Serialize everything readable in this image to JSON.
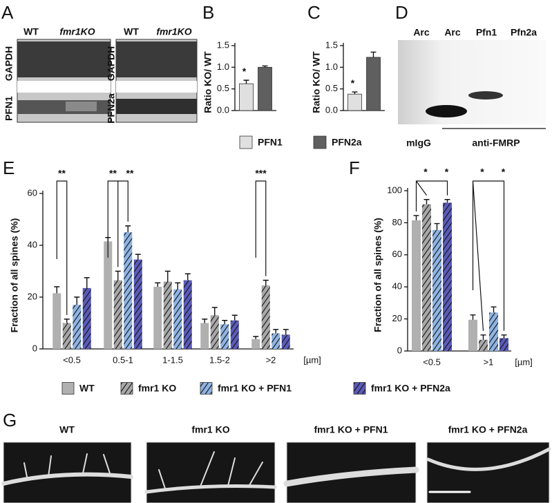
{
  "panel_labels": [
    "A",
    "B",
    "C",
    "D",
    "E",
    "F",
    "G"
  ],
  "blot": {
    "lanes": [
      "WT",
      "fmr1KO",
      "WT",
      "fmr1KO"
    ],
    "rows": [
      "GAPDH",
      "PFN1",
      "GAPDH",
      "PFN2a"
    ]
  },
  "gel": {
    "lanes": [
      "Arc",
      "Arc",
      "Pfn1",
      "Pfn2a"
    ],
    "control": "mIgG",
    "antibody": "anti-FMRP"
  },
  "micrographs": [
    "WT",
    "fmr1 KO",
    "fmr1 KO + PFN1",
    "fmr1 KO + PFN2a"
  ],
  "chart_data": [
    {
      "type": "bar",
      "y_label": "Ratio KO/ WT",
      "ylim": [
        0,
        1.5
      ],
      "yticks": [
        {
          "value": 0,
          "label": "0.0"
        },
        {
          "value": 0.5,
          "label": "0.5"
        },
        {
          "value": 1,
          "label": "1.0"
        },
        {
          "value": 1.5,
          "label": "1.5"
        }
      ],
      "series": [
        {
          "name": "PFN1",
          "color": "#e0e0e0",
          "values": [
            0.62
          ],
          "errors": [
            0.08
          ]
        },
        {
          "name": "PFN2a",
          "color": "#5f5f5f",
          "values": [
            1.0
          ],
          "errors": [
            0.03
          ]
        }
      ],
      "annotations": [
        "*"
      ]
    },
    {
      "type": "bar",
      "y_label": "Ratio KO/ WT",
      "ylim": [
        0,
        1.5
      ],
      "yticks": [
        {
          "value": 0,
          "label": "0.0"
        },
        {
          "value": 0.5,
          "label": "0.5"
        },
        {
          "value": 1,
          "label": "1.0"
        },
        {
          "value": 1.5,
          "label": "1.5"
        }
      ],
      "series": [
        {
          "color": "#e0e0e0",
          "values": [
            0.38
          ],
          "errors": [
            0.05
          ]
        },
        {
          "color": "#5f5f5f",
          "values": [
            1.23
          ],
          "errors": [
            0.12
          ]
        }
      ],
      "annotations": [
        "*"
      ]
    },
    {
      "type": "bar",
      "y_label": "Fraction of all spines (%)",
      "x_unit": "[µm]",
      "categories": [
        "<0.5",
        "0.5-1",
        "1-1.5",
        "1.5-2",
        ">2"
      ],
      "ylim": [
        0,
        60
      ],
      "yticks": [
        0,
        20,
        40,
        60
      ],
      "series": [
        {
          "name": "WT",
          "color": "#b0b0b0",
          "pattern": "solid",
          "values": [
            21.5,
            41.5,
            24,
            10,
            3.8
          ],
          "errors": [
            2.5,
            1.5,
            1.5,
            1.5,
            1
          ]
        },
        {
          "name": "fmr1 KO",
          "color": "#a8a8a8",
          "pattern": "hatched",
          "values": [
            10,
            26.5,
            26,
            13,
            24.5
          ],
          "errors": [
            1.5,
            3.5,
            4,
            3,
            2
          ]
        },
        {
          "name": "fmr1 KO + PFN1",
          "color": "#8fb4e3",
          "pattern": "hatched",
          "values": [
            17,
            45,
            23,
            9.5,
            6
          ],
          "errors": [
            3,
            2.5,
            2.5,
            1.5,
            1.5
          ]
        },
        {
          "name": "fmr1 KO + PFN2a",
          "color": "#5b5bb8",
          "pattern": "hatched",
          "values": [
            23.5,
            34.5,
            26.5,
            11,
            5.5
          ],
          "errors": [
            4,
            2,
            2.5,
            2,
            2
          ]
        }
      ],
      "annotations": [
        "**",
        "**",
        "**",
        "***"
      ]
    },
    {
      "type": "bar",
      "y_label": "Fraction of all spines (%)",
      "x_unit": "[µm]",
      "categories": [
        "<0.5",
        ">1"
      ],
      "ylim": [
        0,
        100
      ],
      "yticks": [
        0,
        20,
        40,
        60,
        80,
        100
      ],
      "series": [
        {
          "color": "#b0b0b0",
          "pattern": "solid",
          "values": [
            81.5,
            19.5
          ],
          "errors": [
            3,
            3
          ]
        },
        {
          "color": "#a8a8a8",
          "pattern": "hatched",
          "values": [
            91.5,
            7
          ],
          "errors": [
            3,
            3
          ]
        },
        {
          "color": "#8fb4e3",
          "pattern": "hatched",
          "values": [
            75.5,
            24
          ],
          "errors": [
            4,
            3.5
          ]
        },
        {
          "color": "#5b5bb8",
          "pattern": "hatched",
          "values": [
            92.5,
            8
          ],
          "errors": [
            2,
            2
          ]
        }
      ],
      "annotations": [
        "*",
        "*",
        "*",
        "*"
      ]
    }
  ]
}
